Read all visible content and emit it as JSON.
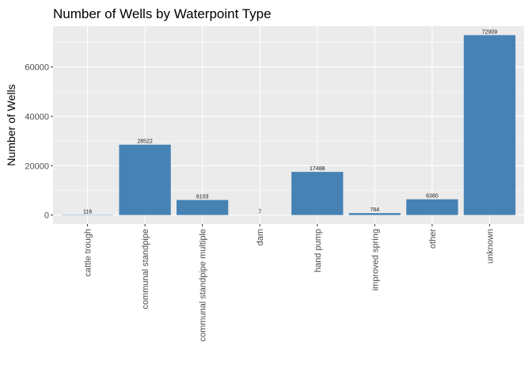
{
  "chart_data": {
    "type": "bar",
    "title": "Number of Wells by Waterpoint Type",
    "xlabel": "",
    "ylabel": "Number of Wells",
    "categories": [
      "cattle trough",
      "communal standpipe",
      "communal standpipe multiple",
      "dam",
      "hand pump",
      "improved spring",
      "other",
      "unknown"
    ],
    "values": [
      116,
      28522,
      6103,
      7,
      17488,
      784,
      6380,
      72909
    ],
    "data_labels": [
      "116",
      "28522",
      "6103",
      "7",
      "17488",
      "784",
      "6380",
      "72909"
    ],
    "yticks": [
      0,
      20000,
      40000,
      60000
    ],
    "ytick_labels": [
      "0",
      "20000",
      "40000",
      "60000"
    ],
    "ylim": [
      -3645,
      76554
    ],
    "bar_color": "#4682B4",
    "panel_background": "#EBEBEB",
    "grid": true,
    "legend": "none"
  }
}
